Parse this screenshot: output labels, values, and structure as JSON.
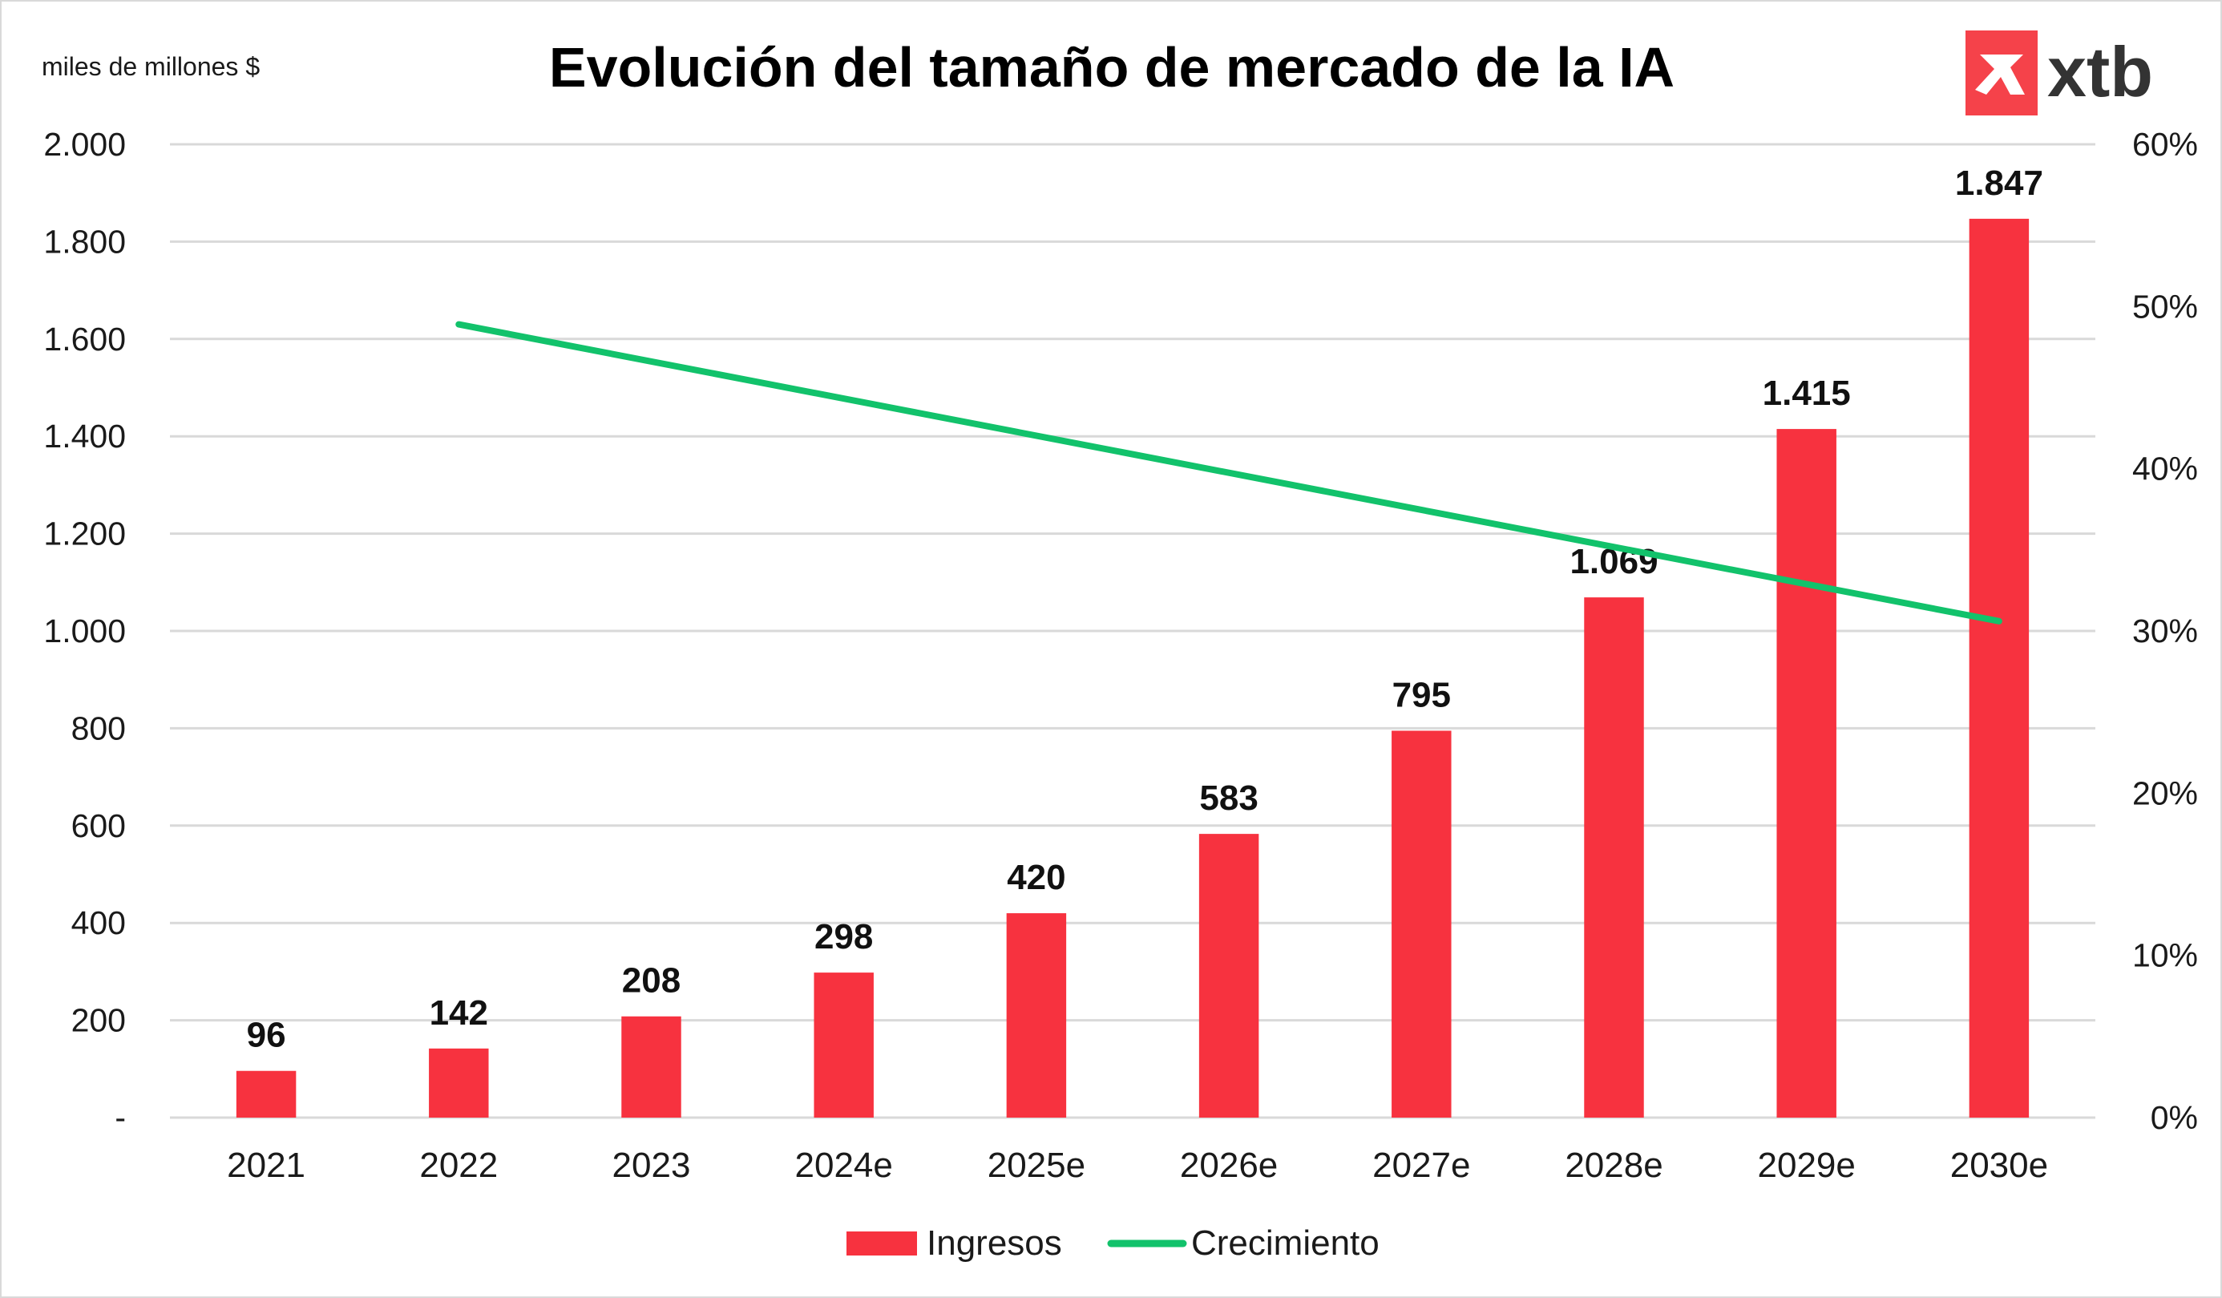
{
  "title": "Evolución del tamaño de mercado de la IA",
  "unit_label": "miles de millones $",
  "logo": {
    "text": "xtb",
    "mark_color": "#f5424a",
    "text_color": "#333333"
  },
  "legend": {
    "bars": "Ingresos",
    "line": "Crecimiento"
  },
  "colors": {
    "bars": "#f7323f",
    "line": "#12c26b",
    "grid": "#d9d9d9"
  },
  "chart_data": {
    "type": "bar",
    "categories": [
      "2021",
      "2022",
      "2023",
      "2024e",
      "2025e",
      "2026e",
      "2027e",
      "2028e",
      "2029e",
      "2030e"
    ],
    "series": [
      {
        "name": "Ingresos",
        "type": "bar",
        "axis": "left",
        "values": [
          96,
          142,
          208,
          298,
          420,
          583,
          795,
          1069,
          1415,
          1847
        ],
        "data_labels": [
          "96",
          "142",
          "208",
          "298",
          "420",
          "583",
          "795",
          "1.069",
          "1.415",
          "1.847"
        ]
      },
      {
        "name": "Crecimiento",
        "type": "line",
        "axis": "right",
        "values": [
          null,
          48.9,
          null,
          null,
          null,
          null,
          null,
          null,
          null,
          30.6
        ]
      }
    ],
    "y_left": {
      "range": [
        0,
        2000
      ],
      "ticks": [
        0,
        200,
        400,
        600,
        800,
        1000,
        1200,
        1400,
        1600,
        1800,
        2000
      ],
      "tick_labels": [
        "-",
        "200",
        "400",
        "600",
        "800",
        "1.000",
        "1.200",
        "1.400",
        "1.600",
        "1.800",
        "2.000"
      ]
    },
    "y_right": {
      "range": [
        0,
        60
      ],
      "ticks": [
        0,
        10,
        20,
        30,
        40,
        50,
        60
      ],
      "tick_labels": [
        "0%",
        "10%",
        "20%",
        "30%",
        "40%",
        "50%",
        "60%"
      ]
    },
    "grid": true,
    "legend_position": "bottom"
  }
}
